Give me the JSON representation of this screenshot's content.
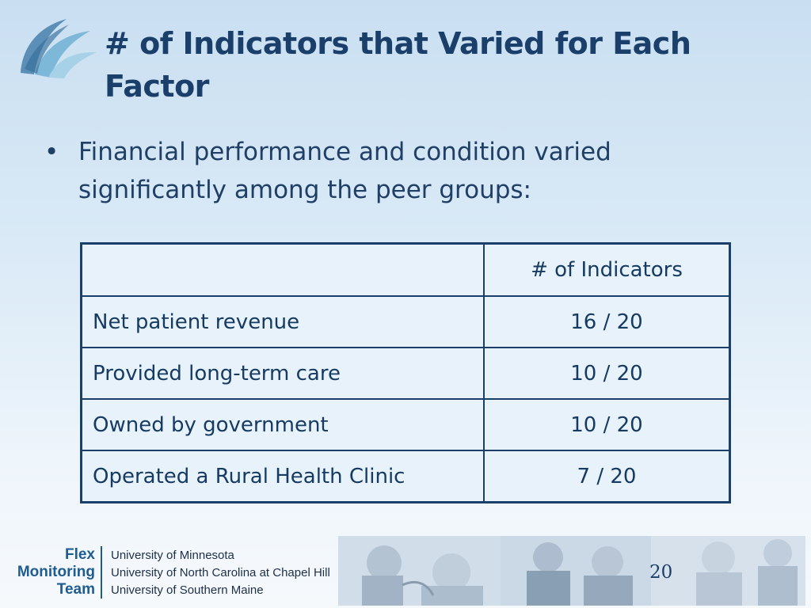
{
  "slide": {
    "title": "# of Indicators that Varied for Each Factor",
    "bullet": "Financial performance and condition varied significantly among the peer groups:",
    "bullet_marker": "•",
    "page_number": "20"
  },
  "table": {
    "header_label": "",
    "header_value": "# of Indicators",
    "rows": [
      {
        "label": "Net patient revenue",
        "value": "16 / 20"
      },
      {
        "label": "Provided long-term care",
        "value": "10 / 20"
      },
      {
        "label": "Owned by government",
        "value": "10 / 20"
      },
      {
        "label": "Operated a Rural Health Clinic",
        "value": "7 / 20"
      }
    ]
  },
  "footer": {
    "logo_lines": [
      "Flex",
      "Monitoring",
      "Team"
    ],
    "universities": [
      "University of Minnesota",
      "University of North Carolina at Chapel Hill",
      "University of Southern Maine"
    ]
  },
  "colors": {
    "primary": "#1b3f6b",
    "background_top": "#c9dff1",
    "background_bottom": "#f6f9fc",
    "table_bg": "#e8f2fb",
    "accent": "#1f5c8f"
  },
  "icons": {
    "top_left": "sail-logo-icon",
    "footer_photos": "photo-strip"
  }
}
